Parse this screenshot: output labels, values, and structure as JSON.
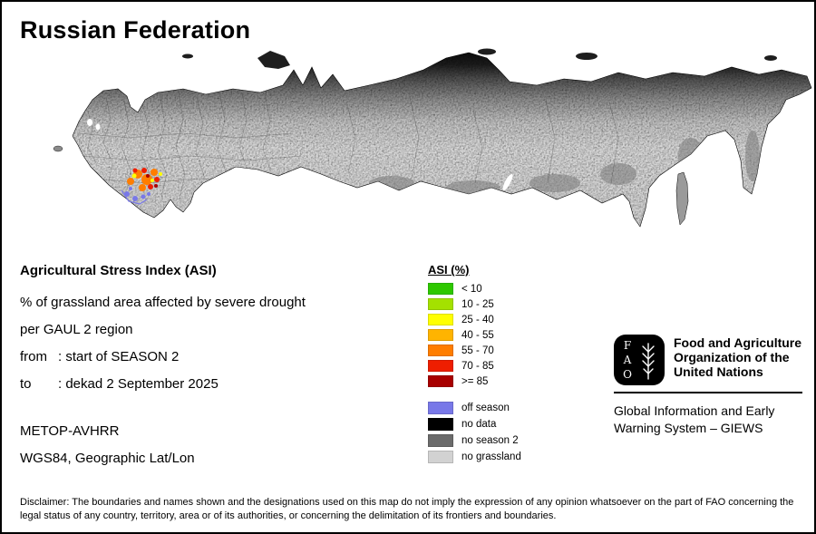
{
  "page": {
    "title": "Russian Federation"
  },
  "info": {
    "heading": "Agricultural Stress Index (ASI)",
    "line1": "% of grassland area affected by severe drought",
    "line2": "per GAUL 2 region",
    "from_label": "from",
    "from_value": ": start of SEASON 2",
    "to_label": "to",
    "to_value": ": dekad 2 September 2025",
    "sensor": "METOP-AVHRR",
    "projection": "WGS84, Geographic Lat/Lon"
  },
  "legend": {
    "title": "ASI (%)",
    "classes": [
      {
        "label": "< 10",
        "color": "#2ec800"
      },
      {
        "label": "10 - 25",
        "color": "#a4e100"
      },
      {
        "label": "25 - 40",
        "color": "#ffff00"
      },
      {
        "label": "40 - 55",
        "color": "#ffb400"
      },
      {
        "label": "55 - 70",
        "color": "#ff7d00"
      },
      {
        "label": "70 - 85",
        "color": "#ee1e00"
      },
      {
        "label": ">= 85",
        "color": "#a80000"
      }
    ],
    "extras": [
      {
        "label": "off season",
        "color": "#7878e8"
      },
      {
        "label": "no data",
        "color": "#000000"
      },
      {
        "label": "no season 2",
        "color": "#6b6b6b"
      },
      {
        "label": "no grassland",
        "color": "#d2d2d2"
      }
    ]
  },
  "org": {
    "logo_text": "FAO",
    "name_lines": [
      "Food and Agriculture",
      "Organization of the",
      "United Nations"
    ],
    "system_lines": [
      "Global Information and Early",
      "Warning System – GIEWS"
    ]
  },
  "disclaimer": "Disclaimer: The boundaries and names shown and the designations used on this map do not imply the expression of any opinion whatsoever on the part of FAO concerning the legal status of any country, territory, area or of its authorities, or concerning the delimitation of its frontiers and boundaries."
}
